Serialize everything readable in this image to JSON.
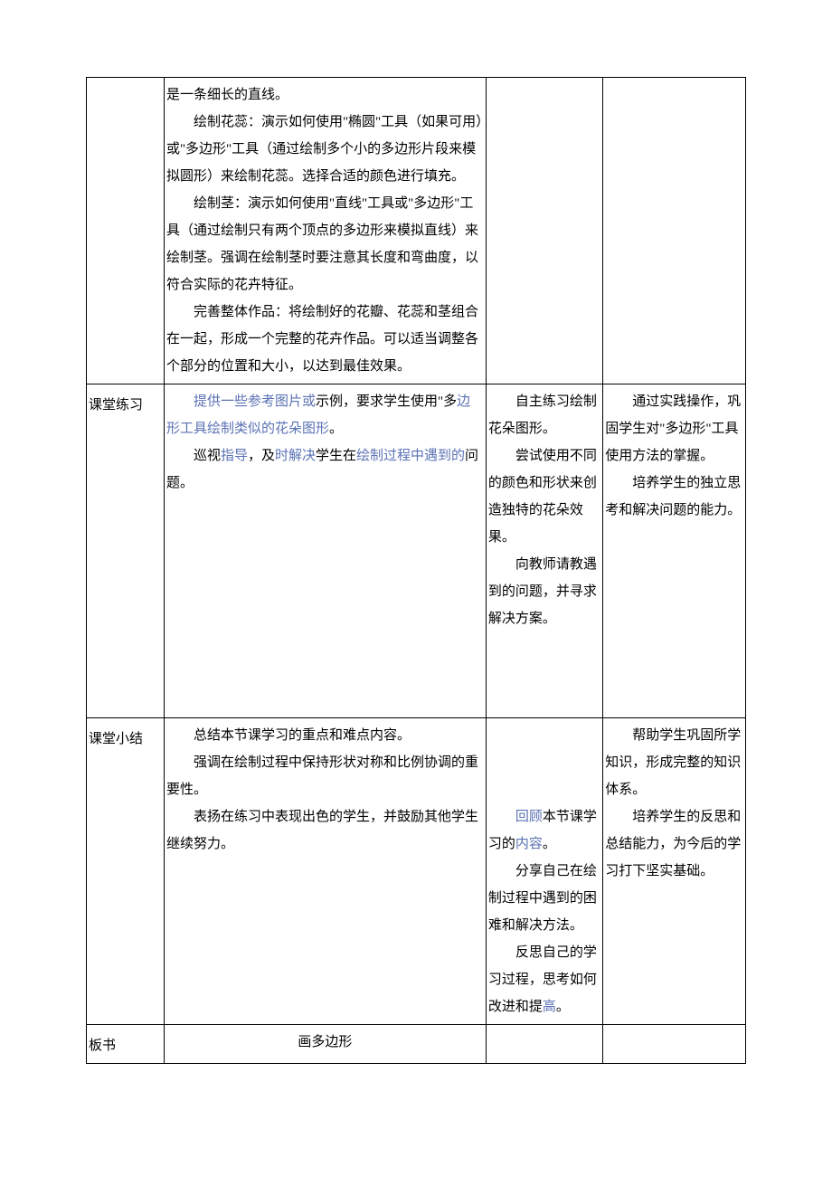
{
  "table": {
    "rows": [
      {
        "col1": "",
        "col2": [
          {
            "text": "是一条细长的直线。",
            "indent": false,
            "highlights": []
          },
          {
            "text": "绘制花蕊：演示如何使用\"椭圆\"工具（如果可用）或\"多边形\"工具（通过绘制多个小的多边形片段来模拟圆形）来绘制花蕊。选择合适的颜色进行填充。",
            "indent": true,
            "highlights": []
          },
          {
            "text": "绘制茎：演示如何使用\"直线\"工具或\"多边形\"工具（通过绘制只有两个顶点的多边形来模拟直线）来绘制茎。强调在绘制茎时要注意其长度和弯曲度，以符合实际的花卉特征。",
            "indent": true,
            "highlights": []
          },
          {
            "text": "完善整体作品：将绘制好的花瓣、花蕊和茎组合在一起，形成一个完整的花卉作品。可以适当调整各个部分的位置和大小，以达到最佳效果。",
            "indent": true,
            "highlights": []
          }
        ],
        "col3": "",
        "col4": ""
      },
      {
        "col1": "课堂练习",
        "col2": [
          {
            "text": "提供一些参考图片或示例，要求学生使用\"多边形工具绘制类似的花朵图形。",
            "indent": true,
            "highlights": [
              "提供一些参考图片或",
              "边形工具绘制类似的花朵图形"
            ]
          },
          {
            "text": "巡视指导，及时解决学生在绘制过程中遇到的问题。",
            "indent": true,
            "highlights": [
              "指导",
              "时解决",
              "绘制过程中遇到的"
            ]
          }
        ],
        "col3": [
          {
            "text": "自主练习绘制花朵图形。",
            "indent": true
          },
          {
            "text": "尝试使用不同的颜色和形状来创造独特的花朵效果。",
            "indent": true
          },
          {
            "text": "向教师请教遇到的问题，并寻求解决方案。",
            "indent": true
          }
        ],
        "col4": [
          {
            "text": "通过实践操作，巩固学生对\"多边形\"工具使用方法的掌握。",
            "indent": true
          },
          {
            "text": "培养学生的独立思考和解决问题的能力。",
            "indent": true
          }
        ]
      },
      {
        "col1": "课堂小结",
        "col2": [
          {
            "text": "总结本节课学习的重点和难点内容。",
            "indent": true,
            "highlights": []
          },
          {
            "text": "强调在绘制过程中保持形状对称和比例协调的重要性。",
            "indent": true,
            "highlights": []
          },
          {
            "text": "表扬在练习中表现出色的学生，并鼓励其他学生继续努力。",
            "indent": true,
            "highlights": []
          }
        ],
        "col3": [
          {
            "text": "回顾本节课学习的内容。",
            "indent": true,
            "hl": [
              "回顾",
              "内容"
            ]
          },
          {
            "text": "分享自己在绘制过程中遇到的困难和解决方法。",
            "indent": true,
            "hl": []
          },
          {
            "text": "反思自己的学习过程，思考如何改进和提高。",
            "indent": true,
            "hl": [
              "高"
            ]
          }
        ],
        "col3_prefix_blank": true,
        "col4": [
          {
            "text": "帮助学生巩固所学知识，形成完整的知识体系。",
            "indent": true
          },
          {
            "text": "培养学生的反思和总结能力，为今后的学习打下坚实基础。",
            "indent": true
          }
        ]
      },
      {
        "col1": "板书",
        "col2_center": "画多边形",
        "col3": "",
        "col4": ""
      }
    ]
  },
  "colors": {
    "text": "#000000",
    "highlight": "#5b72b5",
    "border": "#000000",
    "background": "#ffffff"
  },
  "typography": {
    "font_family": "SimSun",
    "font_size_pt": 11,
    "line_height": 2.0
  }
}
